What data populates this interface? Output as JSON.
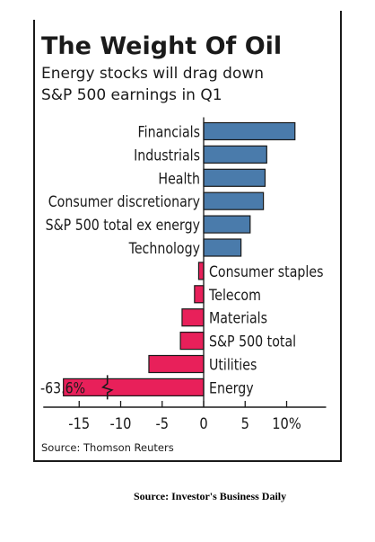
{
  "title": "The Weight Of Oil",
  "subtitle_line1": "Energy stocks will drag down",
  "subtitle_line2": "S&P 500 earnings in Q1",
  "source": "Source: Thomson Reuters",
  "credit": "Source:  Investor's Business Daily",
  "colors": {
    "positive": "#4a7bab",
    "negative": "#e8205a",
    "bar_outline": "#1a1a1a",
    "text": "#1a1a1a"
  },
  "chart_data": {
    "type": "bar",
    "orientation": "horizontal",
    "title": "The Weight Of Oil",
    "subtitle": "Energy stocks will drag down S&P 500 earnings in Q1",
    "categories": [
      "Financials",
      "Industrials",
      "Health",
      "Consumer discretionary",
      "S&P 500 total ex energy",
      "Technology",
      "Consumer staples",
      "Telecom",
      "Materials",
      "S&P 500 total",
      "Utilities",
      "Energy"
    ],
    "values": [
      11.0,
      7.6,
      7.4,
      7.2,
      5.6,
      4.5,
      -0.6,
      -1.1,
      -2.6,
      -2.8,
      -6.6,
      -63.6
    ],
    "value_labels": [
      "",
      "",
      "",
      "",
      "",
      "",
      "",
      "",
      "",
      "",
      "",
      "-63.6%"
    ],
    "broken_axis_bars": [
      "Energy"
    ],
    "xlim": [
      -15,
      10
    ],
    "xticks": [
      -15,
      -10,
      -5,
      0,
      5,
      10
    ],
    "xtick_labels": [
      "-15",
      "-10",
      "-5",
      "0",
      "5",
      "10%"
    ],
    "grid": false
  }
}
